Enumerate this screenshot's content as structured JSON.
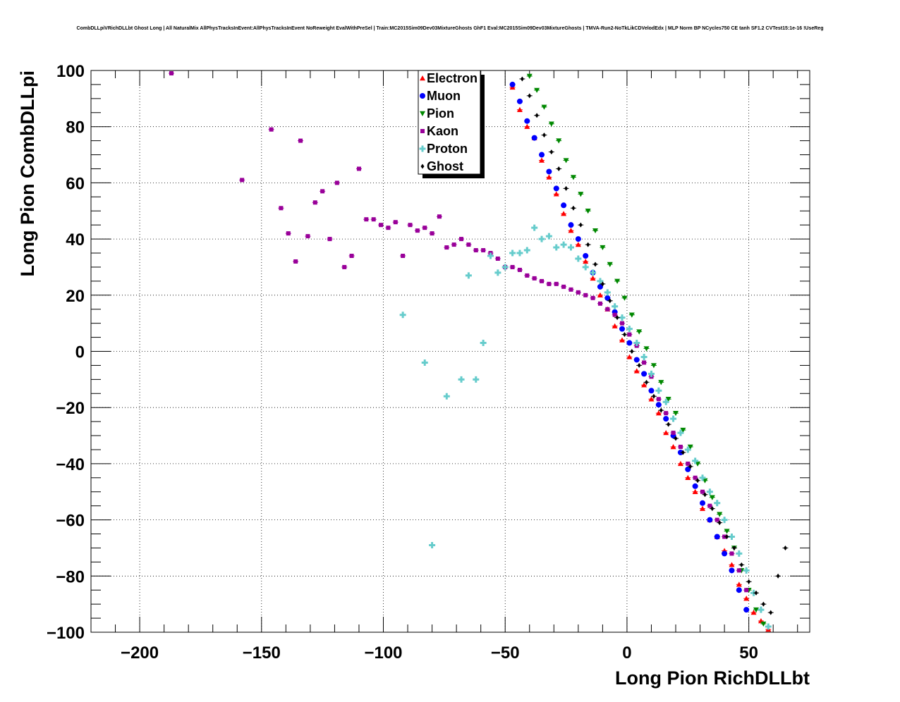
{
  "chart_data": {
    "type": "scatter",
    "title": "CombDLLpiVRichDLLbt Ghost Long | All NaturalMix AllPhysTracksInEvent:AllPhysTracksInEvent NoReweight EvalWithPreSel | Train:MC2015Sim09Dev03MixtureGhosts GhF1 Eval:MC2015Sim09Dev03MixtureGhosts | TMVA-Run2-NoTkLikCDVelodEdx | MLP Norm BP NCycles750 CE tanh SF1.2 CVTest15:1e-16 !UseReg",
    "xlabel": "Long Pion RichDLLbt",
    "ylabel": "Long Pion CombDLLpi",
    "xlim": [
      -220,
      75
    ],
    "ylim": [
      -100,
      100
    ],
    "xticks": [
      -200,
      -150,
      -100,
      -50,
      0,
      50
    ],
    "xtick_labels": [
      "−200",
      "−150",
      "−100",
      "−50",
      "0",
      "50"
    ],
    "yticks": [
      -100,
      -80,
      -60,
      -40,
      -20,
      0,
      20,
      40,
      60,
      80,
      100
    ],
    "ytick_labels": [
      "−100",
      "−80",
      "−60",
      "−40",
      "−20",
      "0",
      "20",
      "40",
      "60",
      "80",
      "100"
    ],
    "grid": true,
    "legend_position": "top-center",
    "series": [
      {
        "name": "Electron",
        "color": "#ff0000",
        "marker": "triangle-up",
        "points": [
          [
            -47,
            94
          ],
          [
            -44,
            86
          ],
          [
            -41,
            80
          ],
          [
            -38,
            76
          ],
          [
            -35,
            68
          ],
          [
            -32,
            62
          ],
          [
            -29,
            56
          ],
          [
            -26,
            49
          ],
          [
            -23,
            43
          ],
          [
            -20,
            38
          ],
          [
            -17,
            32
          ],
          [
            -14,
            26
          ],
          [
            -11,
            20
          ],
          [
            -8,
            15
          ],
          [
            -5,
            9
          ],
          [
            -2,
            4
          ],
          [
            1,
            -2
          ],
          [
            4,
            -7
          ],
          [
            7,
            -12
          ],
          [
            10,
            -17
          ],
          [
            13,
            -22
          ],
          [
            16,
            -29
          ],
          [
            19,
            -34
          ],
          [
            22,
            -40
          ],
          [
            25,
            -45
          ],
          [
            28,
            -50
          ],
          [
            31,
            -56
          ],
          [
            34,
            -60
          ],
          [
            37,
            -66
          ],
          [
            40,
            -71
          ],
          [
            43,
            -76
          ],
          [
            46,
            -83
          ],
          [
            49,
            -88
          ],
          [
            52,
            -93
          ],
          [
            55,
            -96
          ],
          [
            58,
            -99
          ]
        ]
      },
      {
        "name": "Muon",
        "color": "#0000ff",
        "marker": "circle",
        "points": [
          [
            -47,
            95
          ],
          [
            -44,
            89
          ],
          [
            -41,
            82
          ],
          [
            -38,
            76
          ],
          [
            -35,
            70
          ],
          [
            -32,
            64
          ],
          [
            -29,
            58
          ],
          [
            -26,
            52
          ],
          [
            -23,
            45
          ],
          [
            -20,
            40
          ],
          [
            -17,
            34
          ],
          [
            -14,
            28
          ],
          [
            -11,
            23
          ],
          [
            -8,
            19
          ],
          [
            -5,
            14
          ],
          [
            -2,
            8
          ],
          [
            1,
            3
          ],
          [
            4,
            -3
          ],
          [
            7,
            -8
          ],
          [
            10,
            -14
          ],
          [
            13,
            -19
          ],
          [
            16,
            -24
          ],
          [
            19,
            -30
          ],
          [
            22,
            -36
          ],
          [
            25,
            -42
          ],
          [
            28,
            -48
          ],
          [
            31,
            -54
          ],
          [
            34,
            -60
          ],
          [
            37,
            -66
          ],
          [
            40,
            -72
          ],
          [
            43,
            -78
          ],
          [
            46,
            -85
          ],
          [
            49,
            -92
          ]
        ]
      },
      {
        "name": "Pion",
        "color": "#008800",
        "marker": "triangle-down",
        "points": [
          [
            -40,
            98
          ],
          [
            -37,
            93
          ],
          [
            -34,
            87
          ],
          [
            -31,
            81
          ],
          [
            -28,
            75
          ],
          [
            -25,
            68
          ],
          [
            -22,
            62
          ],
          [
            -19,
            56
          ],
          [
            -16,
            50
          ],
          [
            -13,
            43
          ],
          [
            -10,
            37
          ],
          [
            -7,
            31
          ],
          [
            -4,
            25
          ],
          [
            -1,
            19
          ],
          [
            2,
            13
          ],
          [
            5,
            7
          ],
          [
            8,
            1
          ],
          [
            11,
            -5
          ],
          [
            14,
            -11
          ],
          [
            17,
            -17
          ],
          [
            20,
            -22
          ],
          [
            23,
            -28
          ],
          [
            26,
            -34
          ],
          [
            29,
            -40
          ],
          [
            32,
            -46
          ],
          [
            35,
            -52
          ],
          [
            38,
            -58
          ],
          [
            41,
            -64
          ],
          [
            44,
            -70
          ],
          [
            47,
            -78
          ],
          [
            50,
            -85
          ],
          [
            53,
            -92
          ],
          [
            56,
            -97
          ]
        ]
      },
      {
        "name": "Kaon",
        "color": "#990099",
        "marker": "square",
        "points": [
          [
            -187,
            99
          ],
          [
            -158,
            61
          ],
          [
            -146,
            79
          ],
          [
            -142,
            51
          ],
          [
            -139,
            42
          ],
          [
            -136,
            32
          ],
          [
            -134,
            75
          ],
          [
            -131,
            41
          ],
          [
            -128,
            53
          ],
          [
            -125,
            57
          ],
          [
            -122,
            40
          ],
          [
            -119,
            60
          ],
          [
            -116,
            30
          ],
          [
            -113,
            34
          ],
          [
            -110,
            65
          ],
          [
            -107,
            47
          ],
          [
            -104,
            47
          ],
          [
            -101,
            45
          ],
          [
            -98,
            44
          ],
          [
            -95,
            46
          ],
          [
            -92,
            34
          ],
          [
            -89,
            45
          ],
          [
            -86,
            43
          ],
          [
            -83,
            44
          ],
          [
            -80,
            42
          ],
          [
            -77,
            48
          ],
          [
            -74,
            37
          ],
          [
            -71,
            38
          ],
          [
            -68,
            40
          ],
          [
            -65,
            38
          ],
          [
            -62,
            36
          ],
          [
            -59,
            36
          ],
          [
            -56,
            35
          ],
          [
            -53,
            33
          ],
          [
            -50,
            30
          ],
          [
            -47,
            30
          ],
          [
            -44,
            29
          ],
          [
            -41,
            27
          ],
          [
            -38,
            26
          ],
          [
            -35,
            25
          ],
          [
            -32,
            24
          ],
          [
            -29,
            24
          ],
          [
            -26,
            23
          ],
          [
            -23,
            22
          ],
          [
            -20,
            21
          ],
          [
            -17,
            20
          ],
          [
            -14,
            19
          ],
          [
            -11,
            17
          ],
          [
            -8,
            15
          ],
          [
            -5,
            13
          ],
          [
            -2,
            10
          ],
          [
            1,
            6
          ],
          [
            4,
            2
          ],
          [
            7,
            -4
          ],
          [
            10,
            -9
          ],
          [
            13,
            -17
          ],
          [
            16,
            -22
          ],
          [
            19,
            -29
          ],
          [
            22,
            -34
          ],
          [
            25,
            -40
          ],
          [
            28,
            -45
          ],
          [
            31,
            -50
          ],
          [
            34,
            -55
          ],
          [
            37,
            -60
          ],
          [
            40,
            -66
          ],
          [
            43,
            -72
          ],
          [
            46,
            -78
          ],
          [
            49,
            -85
          ]
        ]
      },
      {
        "name": "Proton",
        "color": "#66cccc",
        "marker": "cross",
        "points": [
          [
            -92,
            13
          ],
          [
            -83,
            -4
          ],
          [
            -80,
            -69
          ],
          [
            -74,
            -16
          ],
          [
            -68,
            -10
          ],
          [
            -65,
            27
          ],
          [
            -62,
            -10
          ],
          [
            -59,
            3
          ],
          [
            -56,
            34
          ],
          [
            -53,
            28
          ],
          [
            -50,
            30
          ],
          [
            -47,
            35
          ],
          [
            -44,
            35
          ],
          [
            -41,
            36
          ],
          [
            -38,
            44
          ],
          [
            -35,
            40
          ],
          [
            -32,
            41
          ],
          [
            -29,
            37
          ],
          [
            -26,
            38
          ],
          [
            -23,
            37
          ],
          [
            -20,
            33
          ],
          [
            -17,
            30
          ],
          [
            -14,
            28
          ],
          [
            -11,
            25
          ],
          [
            -8,
            21
          ],
          [
            -5,
            16
          ],
          [
            -2,
            12
          ],
          [
            1,
            8
          ],
          [
            4,
            3
          ],
          [
            7,
            -2
          ],
          [
            10,
            -8
          ],
          [
            13,
            -14
          ],
          [
            16,
            -18
          ],
          [
            19,
            -24
          ],
          [
            22,
            -29
          ],
          [
            25,
            -35
          ],
          [
            28,
            -39
          ],
          [
            31,
            -45
          ],
          [
            34,
            -50
          ],
          [
            37,
            -54
          ],
          [
            40,
            -60
          ],
          [
            43,
            -66
          ],
          [
            46,
            -72
          ],
          [
            49,
            -78
          ],
          [
            52,
            -86
          ],
          [
            55,
            -92
          ],
          [
            58,
            -98
          ]
        ]
      },
      {
        "name": "Ghost",
        "color": "#000000",
        "marker": "diamond",
        "points": [
          [
            -43,
            97
          ],
          [
            -40,
            91
          ],
          [
            -37,
            84
          ],
          [
            -34,
            77
          ],
          [
            -31,
            71
          ],
          [
            -28,
            65
          ],
          [
            -25,
            58
          ],
          [
            -22,
            51
          ],
          [
            -19,
            45
          ],
          [
            -16,
            38
          ],
          [
            -13,
            31
          ],
          [
            -10,
            24
          ],
          [
            -7,
            18
          ],
          [
            -4,
            12
          ],
          [
            -1,
            6
          ],
          [
            2,
            0
          ],
          [
            5,
            -5
          ],
          [
            8,
            -11
          ],
          [
            11,
            -16
          ],
          [
            14,
            -21
          ],
          [
            17,
            -26
          ],
          [
            20,
            -31
          ],
          [
            23,
            -36
          ],
          [
            26,
            -41
          ],
          [
            29,
            -46
          ],
          [
            32,
            -51
          ],
          [
            35,
            -56
          ],
          [
            38,
            -61
          ],
          [
            41,
            -66
          ],
          [
            44,
            -70
          ],
          [
            47,
            -76
          ],
          [
            50,
            -82
          ],
          [
            53,
            -86
          ],
          [
            56,
            -90
          ],
          [
            59,
            -93
          ],
          [
            62,
            -80
          ],
          [
            65,
            -70
          ]
        ]
      }
    ]
  }
}
